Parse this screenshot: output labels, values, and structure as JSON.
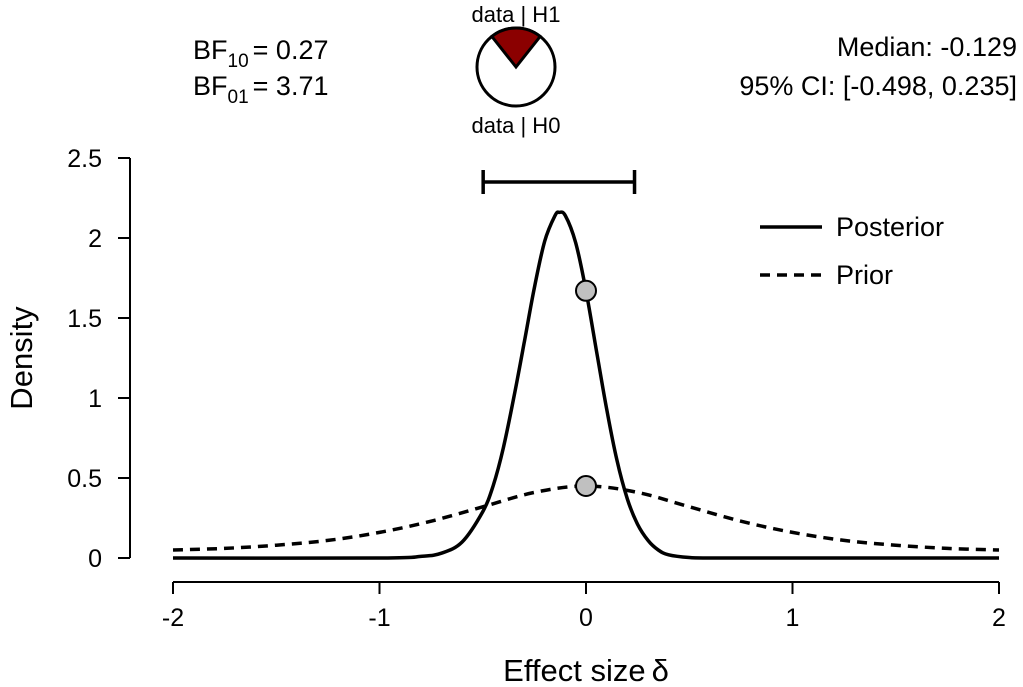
{
  "chart_data": {
    "type": "line",
    "xlabel": "Effect size",
    "xlabel_symbol": "δ",
    "ylabel": "Density",
    "xlim": [
      -2,
      2
    ],
    "ylim": [
      0,
      2.5
    ],
    "x_ticks": [
      "-2",
      "-1",
      "0",
      "1",
      "2"
    ],
    "y_ticks": [
      "0",
      "0.5",
      "1",
      "1.5",
      "2",
      "2.5"
    ],
    "grid": false,
    "legend_position": "top-right",
    "series": [
      {
        "name": "Posterior",
        "style": "solid",
        "x": [
          -2.0,
          -1.0,
          -0.8,
          -0.7,
          -0.6,
          -0.5,
          -0.45,
          -0.4,
          -0.35,
          -0.3,
          -0.25,
          -0.2,
          -0.15,
          -0.129,
          -0.1,
          -0.05,
          0.0,
          0.05,
          0.1,
          0.15,
          0.2,
          0.25,
          0.3,
          0.35,
          0.4,
          0.5,
          0.6,
          0.8,
          1.0,
          2.0
        ],
        "y": [
          0.0,
          0.0,
          0.01,
          0.03,
          0.1,
          0.29,
          0.45,
          0.69,
          1.0,
          1.34,
          1.69,
          1.98,
          2.14,
          2.16,
          2.14,
          1.97,
          1.67,
          1.3,
          0.93,
          0.61,
          0.37,
          0.21,
          0.11,
          0.05,
          0.02,
          0.003,
          0.0,
          0.0,
          0.0,
          0.0
        ]
      },
      {
        "name": "Prior",
        "style": "dashed",
        "x": [
          -2.0,
          -1.75,
          -1.5,
          -1.25,
          -1.0,
          -0.75,
          -0.5,
          -0.25,
          0.0,
          0.25,
          0.5,
          0.75,
          1.0,
          1.25,
          1.5,
          1.75,
          2.0
        ],
        "y": [
          0.05,
          0.06,
          0.08,
          0.11,
          0.16,
          0.23,
          0.32,
          0.41,
          0.45,
          0.41,
          0.32,
          0.23,
          0.16,
          0.11,
          0.08,
          0.06,
          0.05
        ]
      }
    ],
    "points": [
      {
        "x": 0,
        "y": 1.67,
        "series": "Posterior"
      },
      {
        "x": 0,
        "y": 0.45,
        "series": "Prior"
      }
    ],
    "credible_interval": {
      "lower": -0.498,
      "upper": 0.235,
      "y": 2.35
    }
  },
  "bf": {
    "bf10_prefix": "BF",
    "bf10_sub": "10",
    "bf10_value": "= 0.27",
    "bf01_prefix": "BF",
    "bf01_sub": "01",
    "bf01_value": "= 3.71"
  },
  "pie": {
    "label_top": "data | H1",
    "label_bottom": "data | H0",
    "h1_fraction": 0.213,
    "h1_color": "#8b0000",
    "h0_color": "#ffffff"
  },
  "summary": {
    "median_text": "Median: -0.129",
    "ci_text": "95% CI: [-0.498, 0.235]"
  },
  "legend": {
    "posterior_label": "Posterior",
    "prior_label": "Prior"
  },
  "colors": {
    "line": "#000000",
    "point_fill": "#c0c0c0"
  }
}
